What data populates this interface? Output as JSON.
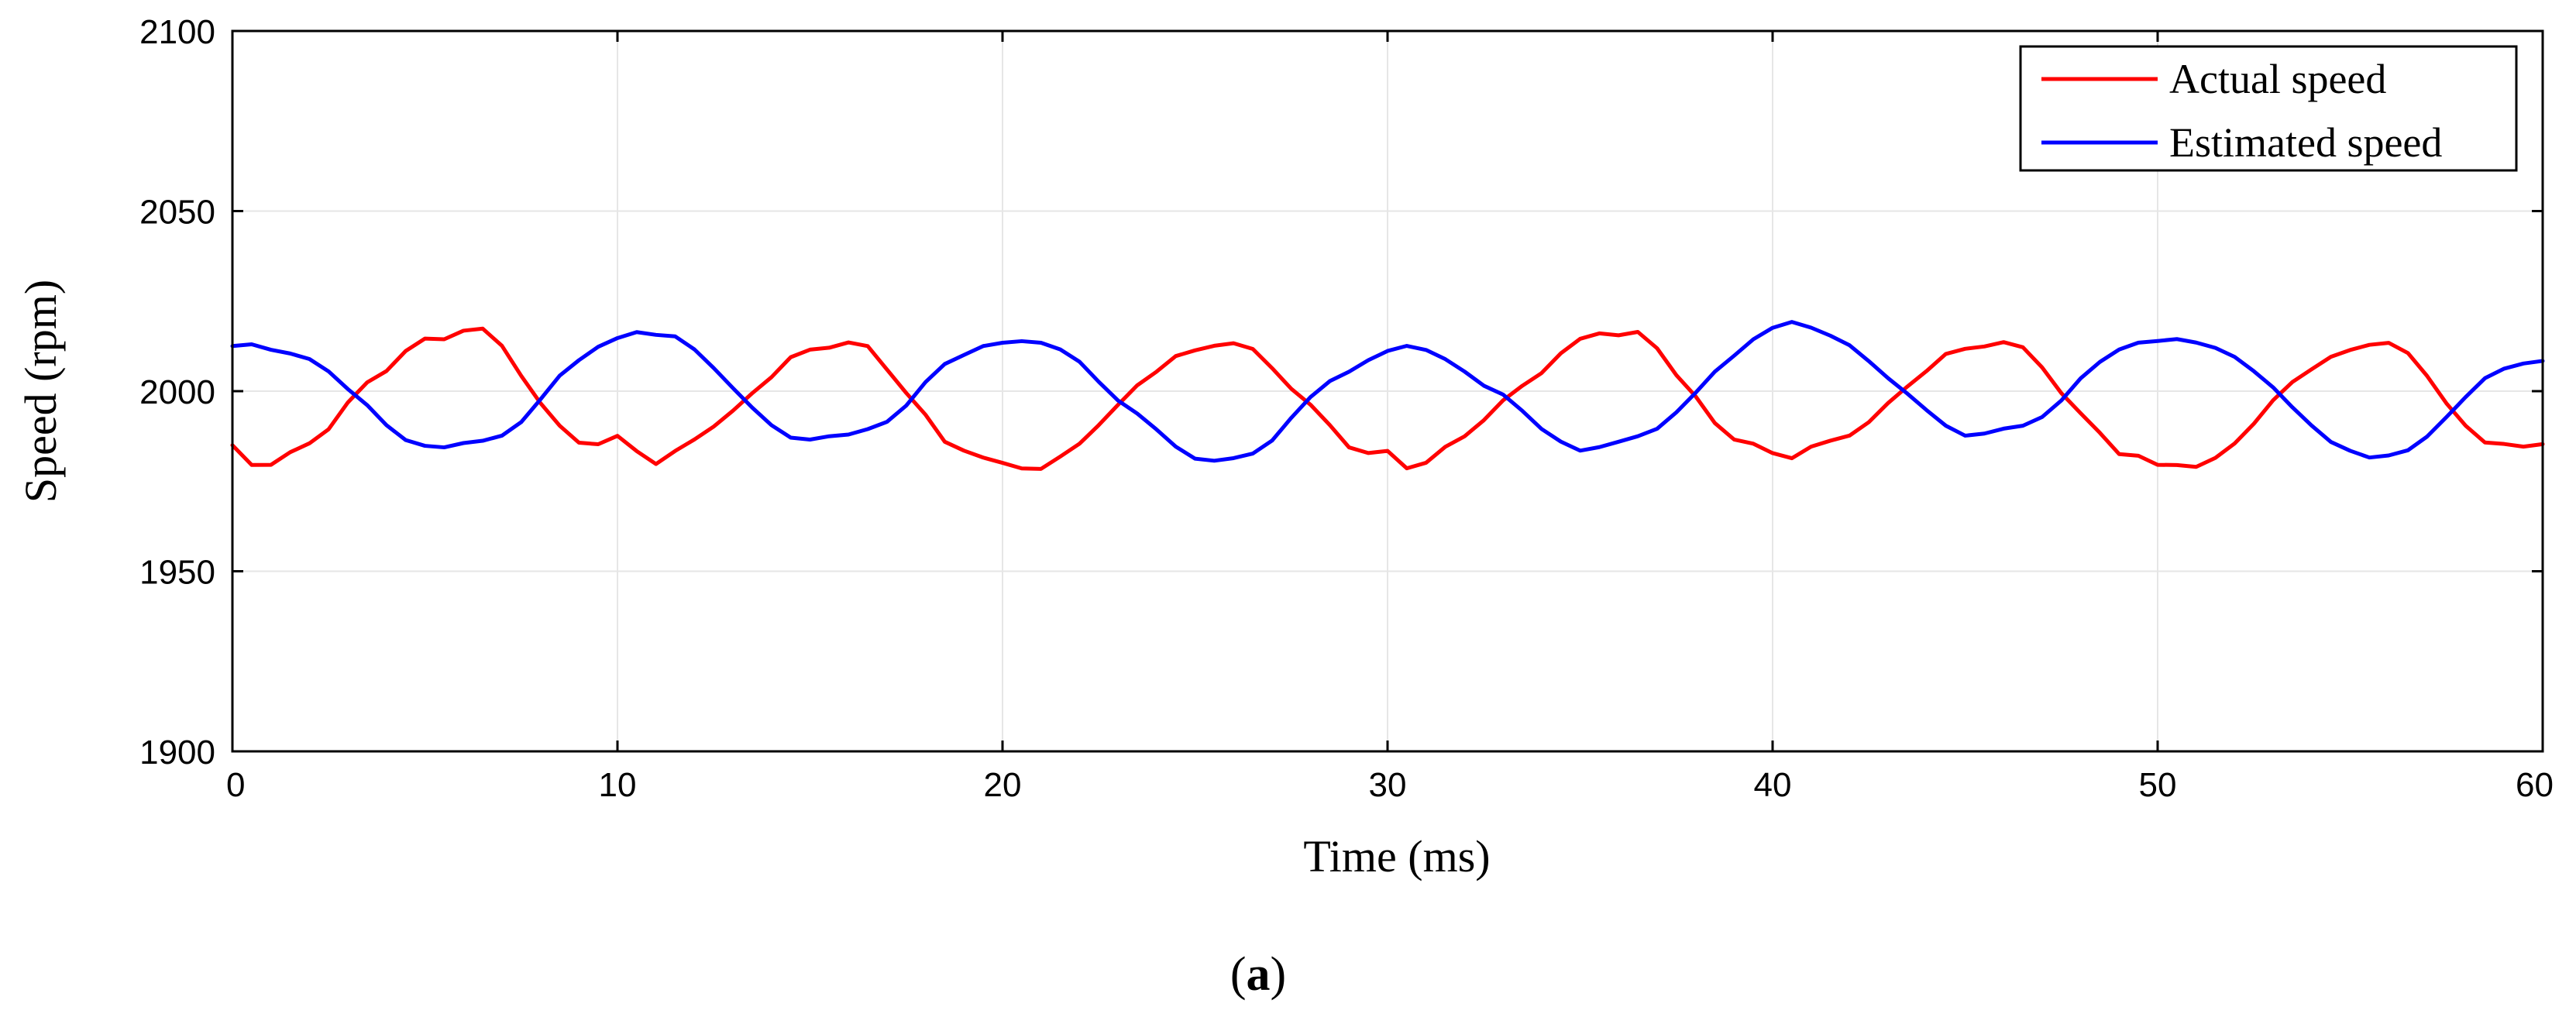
{
  "chart_data": {
    "type": "line",
    "title": "",
    "xlabel": "Time (ms)",
    "ylabel": "Speed (rpm)",
    "xlim": [
      0,
      60
    ],
    "ylim": [
      1900,
      2100
    ],
    "xticks": [
      0,
      10,
      20,
      30,
      40,
      50,
      60
    ],
    "yticks": [
      1900,
      1950,
      2000,
      2050,
      2100
    ],
    "xtick_labels": [
      "0",
      "10",
      "20",
      "30",
      "40",
      "50",
      "60"
    ],
    "ytick_labels": [
      "1900",
      "1950",
      "2000",
      "2050",
      "2100"
    ],
    "grid": true,
    "legend_position": "top-right",
    "series": [
      {
        "name": "Actual speed",
        "color": "#ff0000",
        "x": [
          0,
          0.5,
          1,
          1.5,
          2,
          2.5,
          3,
          3.5,
          4,
          4.5,
          5,
          5.5,
          6,
          6.5,
          7,
          7.5,
          8,
          8.5,
          9,
          9.5,
          10,
          10.5,
          11,
          11.5,
          12,
          12.5,
          13,
          13.5,
          14,
          14.5,
          15,
          15.5,
          16,
          16.5,
          17,
          17.5,
          18,
          18.5,
          19,
          19.5,
          20,
          20.5,
          21,
          21.5,
          22,
          22.5,
          23,
          23.5,
          24,
          24.5,
          25,
          25.5,
          26,
          26.5,
          27,
          27.5,
          28,
          28.5,
          29,
          29.5,
          30,
          30.5,
          31,
          31.5,
          32,
          32.5,
          33,
          33.5,
          34,
          34.5,
          35,
          35.5,
          36,
          36.5,
          37,
          37.5,
          38,
          38.5,
          39,
          39.5,
          40,
          40.5,
          41,
          41.5,
          42,
          42.5,
          43,
          43.5,
          44,
          44.5,
          45,
          45.5,
          46,
          46.5,
          47,
          47.5,
          48,
          48.5,
          49,
          49.5,
          50,
          50.5,
          51,
          51.5,
          52,
          52.5,
          53,
          53.5,
          54,
          54.5,
          55,
          55.5,
          56,
          56.5,
          57,
          57.5,
          58,
          58.5,
          59,
          59.5,
          60
        ],
        "values": [
          1985,
          1979,
          1979,
          1983,
          1986,
          1990,
          1997,
          2002,
          2005,
          2011,
          2015,
          2015,
          2017,
          2017,
          2012,
          2004,
          1997,
          1991,
          1986,
          1985,
          1987,
          1983,
          1980,
          1984,
          1987,
          1990,
          1994,
          1999,
          2004,
          2010,
          2012,
          2012,
          2013,
          2012,
          2006,
          2000,
          1994,
          1986,
          1983,
          1981,
          1980,
          1979,
          1979,
          1982,
          1985,
          1990,
          1996,
          2002,
          2006,
          2010,
          2011,
          2012,
          2013,
          2012,
          2007,
          2001,
          1996,
          1990,
          1984,
          1983,
          1984,
          1979,
          1980,
          1984,
          1987,
          1992,
          1998,
          2002,
          2005,
          2010,
          2014,
          2016,
          2016,
          2017,
          2012,
          2004,
          1998,
          1991,
          1987,
          1986,
          1983,
          1981,
          1984,
          1986,
          1988,
          1992,
          1997,
          2001,
          2005,
          2010,
          2012,
          2013,
          2014,
          2012,
          2006,
          1999,
          1994,
          1989,
          1983,
          1982,
          1979,
          1979,
          1979,
          1982,
          1986,
          1991,
          1997,
          2002,
          2006,
          2010,
          2012,
          2013,
          2013,
          2010,
          2004,
          1997,
          1991,
          1986,
          1985,
          1984,
          1985
        ]
      },
      {
        "name": "Estimated speed",
        "color": "#0000ff",
        "x": [
          0,
          0.5,
          1,
          1.5,
          2,
          2.5,
          3,
          3.5,
          4,
          4.5,
          5,
          5.5,
          6,
          6.5,
          7,
          7.5,
          8,
          8.5,
          9,
          9.5,
          10,
          10.5,
          11,
          11.5,
          12,
          12.5,
          13,
          13.5,
          14,
          14.5,
          15,
          15.5,
          16,
          16.5,
          17,
          17.5,
          18,
          18.5,
          19,
          19.5,
          20,
          20.5,
          21,
          21.5,
          22,
          22.5,
          23,
          23.5,
          24,
          24.5,
          25,
          25.5,
          26,
          26.5,
          27,
          27.5,
          28,
          28.5,
          29,
          29.5,
          30,
          30.5,
          31,
          31.5,
          32,
          32.5,
          33,
          33.5,
          34,
          34.5,
          35,
          35.5,
          36,
          36.5,
          37,
          37.5,
          38,
          38.5,
          39,
          39.5,
          40,
          40.5,
          41,
          41.5,
          42,
          42.5,
          43,
          43.5,
          44,
          44.5,
          45,
          45.5,
          46,
          46.5,
          47,
          47.5,
          48,
          48.5,
          49,
          49.5,
          50,
          50.5,
          51,
          51.5,
          52,
          52.5,
          53,
          53.5,
          54,
          54.5,
          55,
          55.5,
          56,
          56.5,
          57,
          57.5,
          58,
          58.5,
          59,
          59.5,
          60
        ],
        "values": [
          2012,
          2013,
          2012,
          2011,
          2009,
          2005,
          2000,
          1996,
          1991,
          1987,
          1985,
          1984,
          1985,
          1986,
          1988,
          1992,
          1998,
          2004,
          2008,
          2012,
          2015,
          2017,
          2016,
          2015,
          2011,
          2006,
          2001,
          1996,
          1991,
          1987,
          1986,
          1987,
          1988,
          1990,
          1992,
          1996,
          2002,
          2007,
          2010,
          2013,
          2014,
          2014,
          2013,
          2011,
          2008,
          2003,
          1998,
          1994,
          1989,
          1984,
          1981,
          1981,
          1982,
          1983,
          1986,
          1992,
          1998,
          2003,
          2006,
          2009,
          2011,
          2012,
          2011,
          2009,
          2006,
          2002,
          1999,
          1994,
          1989,
          1986,
          1984,
          1985,
          1986,
          1987,
          1989,
          1994,
          2000,
          2006,
          2010,
          2014,
          2017,
          2019,
          2018,
          2016,
          2013,
          2008,
          2003,
          1999,
          1995,
          1991,
          1988,
          1988,
          1989,
          1990,
          1993,
          1998,
          2004,
          2008,
          2011,
          2013,
          2014,
          2015,
          2014,
          2012,
          2009,
          2005,
          2001,
          1996,
          1991,
          1986,
          1983,
          1981,
          1982,
          1984,
          1988,
          1993,
          1998,
          2003,
          2006,
          2008,
          2009
        ]
      }
    ]
  },
  "caption": {
    "open": "(",
    "letter": "a",
    "close": ")"
  }
}
